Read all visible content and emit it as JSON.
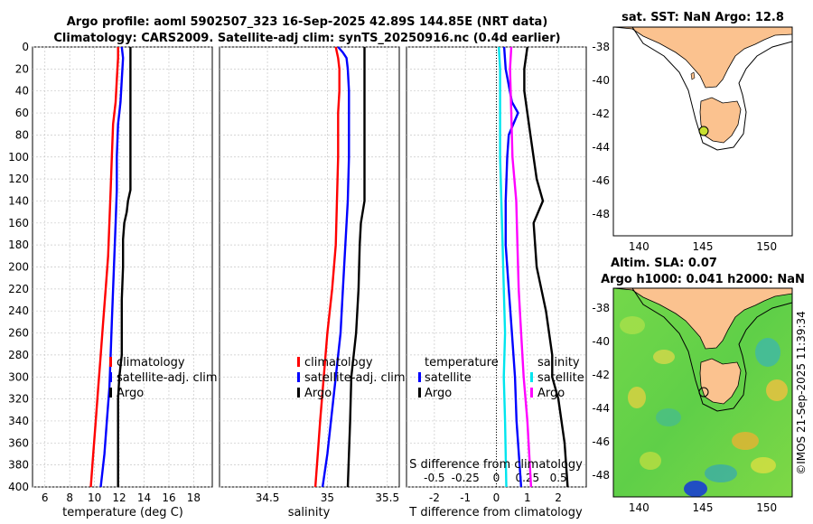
{
  "title": {
    "line1": "Argo profile: aoml 5902507_323 16-Sep-2025 42.89S 144.85E (NRT data)",
    "line2": "Climatology: CARS2009. Satellite-adj clim: synTS_20250916.nc (0.4d earlier)"
  },
  "credit": "©IMOS 21-Sep-2025 11:39:34",
  "colors": {
    "climatology": "#ff0000",
    "satellite": "#0000ff",
    "argo": "#000000",
    "temp_diff_argo": "#000000",
    "sal_diff_satellite": "#00e5ee",
    "sal_diff_argo": "#ff00ff",
    "land": "#fbc28f",
    "ocean": "#ffffff",
    "argo_marker": "#c8e030"
  },
  "chart_data": [
    {
      "type": "line",
      "panel": "temperature",
      "xlabel": "temperature (deg C)",
      "ylabel": "",
      "xlim": [
        5,
        19.5
      ],
      "ylim": [
        400,
        0
      ],
      "xticks": [
        6,
        8,
        10,
        12,
        14,
        16,
        18
      ],
      "yticks": [
        0,
        20,
        40,
        60,
        80,
        100,
        120,
        140,
        160,
        180,
        200,
        220,
        240,
        260,
        280,
        300,
        320,
        340,
        360,
        380,
        400
      ],
      "grid": true,
      "legend": [
        "climatology",
        "satellite-adj. clim",
        "Argo"
      ],
      "series": [
        {
          "name": "climatology",
          "depth": [
            0,
            10,
            30,
            50,
            70,
            100,
            130,
            160,
            190,
            220,
            250,
            280,
            310,
            340,
            370,
            400
          ],
          "values": [
            11.9,
            11.9,
            11.8,
            11.7,
            11.5,
            11.4,
            11.3,
            11.2,
            11.1,
            10.9,
            10.7,
            10.5,
            10.3,
            10.1,
            9.9,
            9.7
          ]
        },
        {
          "name": "satellite-adj. clim",
          "depth": [
            0,
            10,
            30,
            50,
            60,
            70,
            100,
            130,
            160,
            190,
            220,
            250,
            280,
            310,
            340,
            370,
            400
          ],
          "values": [
            12.2,
            12.3,
            12.2,
            12.1,
            12.0,
            11.9,
            11.8,
            11.8,
            11.7,
            11.6,
            11.5,
            11.4,
            11.3,
            11.2,
            11.0,
            10.8,
            10.5
          ]
        },
        {
          "name": "Argo",
          "depth": [
            0,
            20,
            60,
            100,
            130,
            140,
            150,
            160,
            175,
            200,
            230,
            260,
            280,
            300,
            320,
            340,
            370,
            400
          ],
          "values": [
            12.9,
            12.9,
            12.9,
            12.9,
            12.9,
            12.7,
            12.6,
            12.4,
            12.3,
            12.3,
            12.2,
            12.2,
            12.2,
            12.0,
            11.9,
            11.9,
            11.9,
            11.9
          ]
        }
      ]
    },
    {
      "type": "line",
      "panel": "salinity",
      "xlabel": "salinity",
      "xlim": [
        34.1,
        35.6
      ],
      "ylim": [
        400,
        0
      ],
      "xticks": [
        34.5,
        35,
        35.5
      ],
      "xticklabels": [
        "34.5",
        "35",
        "35.5"
      ],
      "grid": true,
      "legend": [
        "climatology",
        "satellite-adj. clim",
        "Argo"
      ],
      "series": [
        {
          "name": "climatology",
          "depth": [
            0,
            10,
            20,
            40,
            60,
            100,
            140,
            180,
            220,
            260,
            300,
            340,
            370,
            400
          ],
          "values": [
            35.07,
            35.09,
            35.1,
            35.1,
            35.09,
            35.09,
            35.08,
            35.07,
            35.04,
            35.0,
            34.97,
            34.94,
            34.92,
            34.9
          ]
        },
        {
          "name": "satellite-adj. clim",
          "depth": [
            0,
            5,
            10,
            20,
            40,
            60,
            100,
            140,
            180,
            220,
            260,
            300,
            340,
            370,
            400
          ],
          "values": [
            35.09,
            35.13,
            35.16,
            35.17,
            35.18,
            35.18,
            35.18,
            35.17,
            35.15,
            35.13,
            35.11,
            35.07,
            35.03,
            35.0,
            34.96
          ]
        },
        {
          "name": "Argo",
          "depth": [
            0,
            40,
            100,
            140,
            160,
            180,
            220,
            260,
            300,
            340,
            370,
            400
          ],
          "values": [
            35.31,
            35.31,
            35.31,
            35.31,
            35.28,
            35.27,
            35.26,
            35.24,
            35.2,
            35.19,
            35.18,
            35.17
          ]
        }
      ]
    },
    {
      "type": "line",
      "panel": "difference",
      "xlabel": "T difference from climatology",
      "xlabel_top": "S difference from climatology",
      "xlim": [
        -2.9,
        2.9
      ],
      "ylim": [
        400,
        0
      ],
      "xticks": [
        -2,
        -1,
        0,
        1,
        2
      ],
      "xticklabels": [
        "-2",
        "-1",
        "0",
        "1",
        "2"
      ],
      "xticks_top": [
        -0.5,
        -0.25,
        0,
        0.25,
        0.5
      ],
      "xticklabels_top": [
        "-0.5",
        "-0.25",
        "0",
        "0.25",
        "0.5"
      ],
      "grid": true,
      "legend_temperature": [
        "temperature",
        "satellite",
        "Argo"
      ],
      "legend_salinity": [
        "salinity",
        "satellite",
        "Argo"
      ],
      "series": [
        {
          "name": "temperature satellite",
          "depth": [
            0,
            20,
            50,
            60,
            80,
            100,
            140,
            180,
            220,
            260,
            300,
            340,
            400
          ],
          "values": [
            0.25,
            0.3,
            0.5,
            0.7,
            0.4,
            0.35,
            0.3,
            0.3,
            0.4,
            0.5,
            0.6,
            0.65,
            0.8
          ]
        },
        {
          "name": "temperature Argo",
          "depth": [
            0,
            20,
            40,
            80,
            120,
            140,
            160,
            200,
            240,
            280,
            300,
            320,
            360,
            400
          ],
          "values": [
            1.0,
            0.9,
            0.9,
            1.1,
            1.3,
            1.5,
            1.2,
            1.3,
            1.6,
            1.8,
            1.8,
            2.0,
            2.2,
            2.3
          ]
        },
        {
          "name": "salinity satellite",
          "depth": [
            0,
            20,
            60,
            100,
            140,
            180,
            220,
            260,
            300,
            340,
            400
          ],
          "values": [
            0.02,
            0.03,
            0.03,
            0.03,
            0.04,
            0.05,
            0.06,
            0.07,
            0.06,
            0.07,
            0.08
          ]
        },
        {
          "name": "salinity Argo",
          "depth": [
            0,
            20,
            60,
            100,
            140,
            180,
            220,
            260,
            300,
            340,
            400
          ],
          "values": [
            0.12,
            0.11,
            0.12,
            0.13,
            0.16,
            0.17,
            0.18,
            0.2,
            0.22,
            0.25,
            0.28
          ]
        }
      ]
    },
    {
      "type": "map",
      "panel": "sst_map",
      "title": "sat. SST: NaN Argo: 12.8",
      "xlim": [
        138,
        152
      ],
      "ylim": [
        -49.3,
        -36.8
      ],
      "xticks": [
        140,
        145,
        150
      ],
      "yticks": [
        -38,
        -40,
        -42,
        -44,
        -46,
        -48
      ],
      "argo_position": [
        144.85,
        -42.89
      ]
    },
    {
      "type": "map",
      "panel": "sla_map",
      "title_line1": "Altim. SLA: 0.07",
      "title_line2": "Argo h1000: 0.041 h2000: NaN",
      "xlim": [
        138,
        152
      ],
      "ylim": [
        -49.3,
        -36.8
      ],
      "xticks": [
        140,
        145,
        150
      ],
      "yticks": [
        -38,
        -40,
        -42,
        -44,
        -46,
        -48
      ],
      "argo_position": [
        144.85,
        -42.89
      ]
    }
  ]
}
